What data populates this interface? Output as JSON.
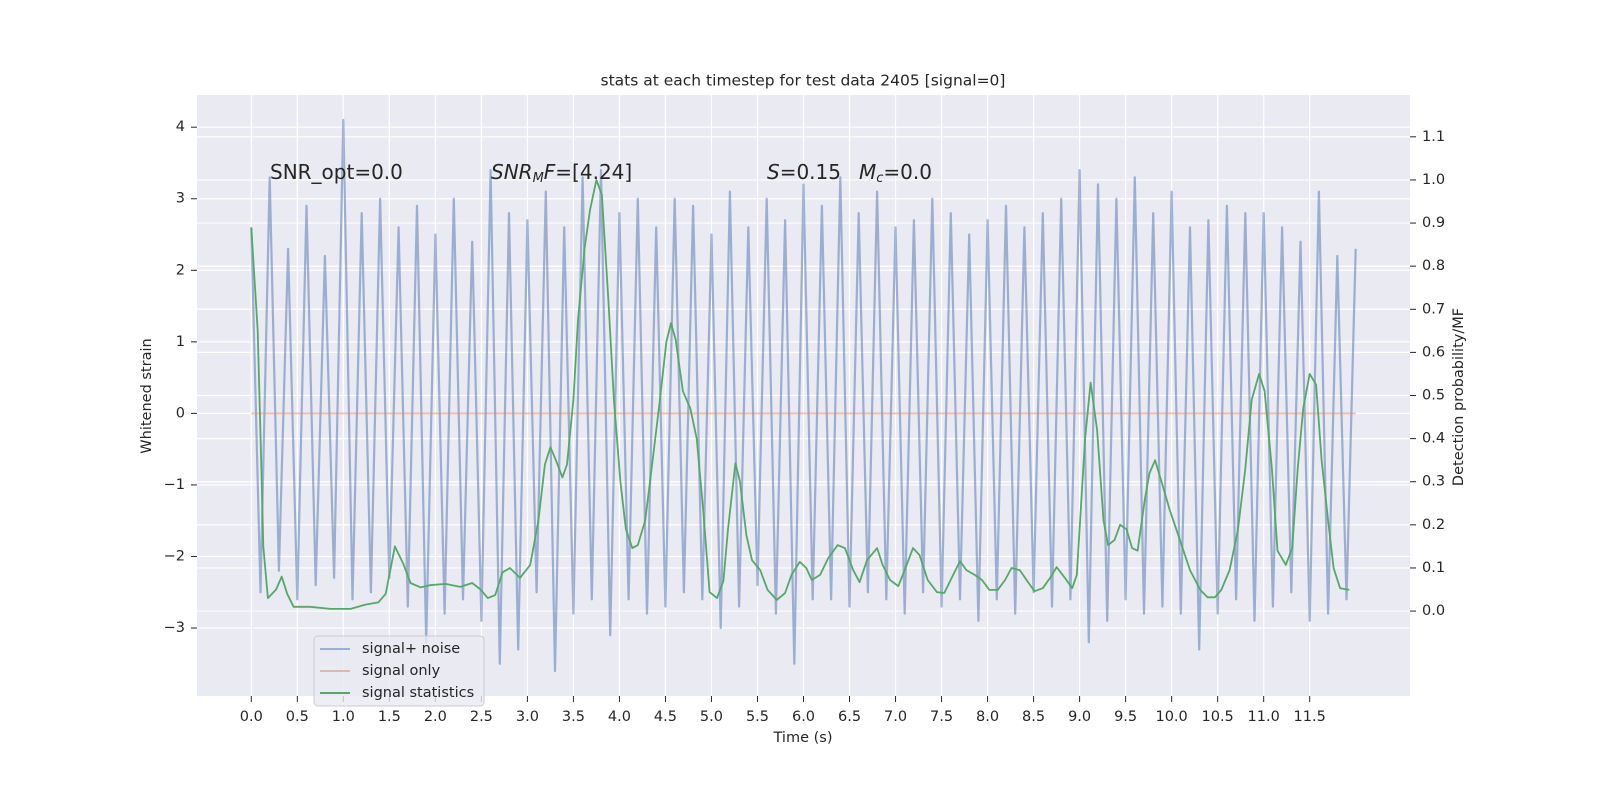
{
  "chart_data": {
    "type": "line",
    "title": "stats at each timestep for test data 2405 [signal=0]",
    "x_label": "Time (s)",
    "y_label": "Whitened strain",
    "y2_label": "Detection probability/MF",
    "xlim": [
      -0.59,
      12.59
    ],
    "ylim": [
      -3.95,
      4.45
    ],
    "y2lim": [
      -0.197,
      1.197
    ],
    "xticks": [
      {
        "value": 0,
        "label": "0.0"
      },
      0.5,
      {
        "value": 1,
        "label": "1.0"
      },
      1.5,
      {
        "value": 2,
        "label": "2.0"
      },
      2.5,
      {
        "value": 3,
        "label": "3.0"
      },
      3.5,
      {
        "value": 4,
        "label": "4.0"
      },
      4.5,
      {
        "value": 5,
        "label": "5.0"
      },
      5.5,
      {
        "value": 6,
        "label": "6.0"
      },
      6.5,
      {
        "value": 7,
        "label": "7.0"
      },
      7.5,
      {
        "value": 8,
        "label": "8.0"
      },
      8.5,
      {
        "value": 9,
        "label": "9.0"
      },
      9.5,
      {
        "value": 10,
        "label": "10.0"
      },
      10.5,
      {
        "value": 11,
        "label": "11.0"
      },
      11.5
    ],
    "yticks": [
      {
        "value": -3,
        "label": "−3"
      },
      {
        "value": -2,
        "label": "−2"
      },
      {
        "value": -1,
        "label": "−1"
      },
      0,
      1,
      2,
      3,
      4
    ],
    "y2ticks": [
      {
        "value": 0,
        "label": "0.0"
      },
      0.1,
      0.2,
      0.3,
      0.4,
      0.5,
      0.6,
      0.7,
      0.8,
      0.9,
      {
        "value": 1,
        "label": "1.0"
      },
      1.1
    ],
    "grid": true,
    "background": "#eaeaf2",
    "legend": "lower left",
    "annotations": [
      [
        {
          "text": "SNR_opt=0.0",
          "style": "normal"
        }
      ],
      [
        {
          "text": "SNR",
          "style": "italic"
        },
        {
          "text": "M",
          "style": "sub"
        },
        {
          "text": "F",
          "style": "italic"
        },
        {
          "text": "=[4.24]",
          "style": "normal"
        }
      ],
      [
        {
          "text": "S",
          "style": "italic"
        },
        {
          "text": "=0.15",
          "style": "normal"
        },
        {
          "text": "M",
          "style": "italic"
        },
        {
          "text": "c",
          "style": "sub"
        },
        {
          "text": "=0.0",
          "style": "normal"
        }
      ]
    ],
    "series": [
      {
        "name": "signal+ noise",
        "color": "#4c72b0",
        "alpha": 0.5,
        "x": [
          0,
          0.1,
          0.2,
          0.3,
          0.4,
          0.5,
          0.6,
          0.7,
          0.8,
          0.9,
          1,
          1.1,
          1.2,
          1.3,
          1.4,
          1.5,
          1.6,
          1.7,
          1.8,
          1.9,
          2,
          2.1,
          2.2,
          2.3,
          2.4,
          2.5,
          2.6,
          2.7,
          2.8,
          2.9,
          3,
          3.1,
          3.2,
          3.3,
          3.4,
          3.5,
          3.6,
          3.7,
          3.8,
          3.9,
          4,
          4.1,
          4.2,
          4.3,
          4.4,
          4.5,
          4.6,
          4.7,
          4.8,
          4.9,
          5,
          5.1,
          5.2,
          5.3,
          5.4,
          5.5,
          5.6,
          5.7,
          5.8,
          5.9,
          6,
          6.1,
          6.2,
          6.3,
          6.4,
          6.5,
          6.6,
          6.7,
          6.8,
          6.9,
          7,
          7.1,
          7.2,
          7.3,
          7.4,
          7.5,
          7.6,
          7.7,
          7.8,
          7.9,
          8,
          8.1,
          8.2,
          8.3,
          8.4,
          8.5,
          8.6,
          8.7,
          8.8,
          8.9,
          9,
          9.1,
          9.2,
          9.3,
          9.4,
          9.5,
          9.6,
          9.7,
          9.8,
          9.9,
          10,
          10.1,
          10.2,
          10.3,
          10.4,
          10.5,
          10.6,
          10.7,
          10.8,
          10.9,
          11,
          11.1,
          11.2,
          11.3,
          11.4,
          11.5,
          11.6,
          11.7,
          11.8,
          11.9,
          12
        ],
        "values": [
          2.6,
          -2.5,
          3.3,
          -2.2,
          2.3,
          -2.6,
          2.9,
          -2.4,
          2.2,
          -2.3,
          4.1,
          -2.6,
          2.8,
          -2.5,
          3.0,
          -2.3,
          2.6,
          -2.7,
          2.9,
          -3.2,
          2.5,
          -2.8,
          3.0,
          -2.6,
          2.4,
          -2.9,
          3.4,
          -3.5,
          2.8,
          -3.3,
          2.7,
          -2.5,
          3.1,
          -3.6,
          2.6,
          -2.8,
          3.3,
          -2.6,
          3.4,
          -3.1,
          2.8,
          -2.6,
          3.0,
          -2.8,
          2.6,
          -2.7,
          3.0,
          -2.5,
          2.9,
          -2.6,
          2.5,
          -3.0,
          3.1,
          -2.7,
          2.6,
          -2.4,
          3.0,
          -2.8,
          2.7,
          -3.5,
          3.2,
          -2.6,
          2.9,
          -2.6,
          3.3,
          -2.7,
          2.8,
          -2.5,
          3.1,
          -2.6,
          2.6,
          -2.8,
          2.7,
          -2.5,
          3.0,
          -2.7,
          2.8,
          -2.6,
          2.5,
          -2.9,
          2.7,
          -2.6,
          2.9,
          -2.8,
          2.6,
          -2.5,
          2.8,
          -2.7,
          3.0,
          -2.6,
          3.4,
          -3.2,
          3.2,
          -2.9,
          3.0,
          -2.6,
          3.3,
          -2.8,
          2.8,
          -2.7,
          3.1,
          -2.8,
          2.6,
          -3.3,
          2.7,
          -2.8,
          2.9,
          -2.6,
          2.8,
          -2.9,
          2.8,
          -2.7,
          2.6,
          -2.5,
          2.4,
          -2.9,
          3.1,
          -2.8,
          2.2,
          -2.6,
          2.3
        ]
      },
      {
        "name": "signal only",
        "color": "#dd8452",
        "alpha": 0.5,
        "x": [
          0,
          12
        ],
        "values": [
          0,
          0
        ]
      },
      {
        "name": "signal statistics",
        "color": "#55a868",
        "alpha": 1,
        "axis": "y2",
        "x": [
          0,
          0.07,
          0.11,
          0.13,
          0.18,
          0.27,
          0.33,
          0.39,
          0.46,
          0.64,
          0.86,
          1.08,
          1.24,
          1.38,
          1.46,
          1.56,
          1.65,
          1.73,
          1.84,
          1.94,
          2.11,
          2.27,
          2.4,
          2.49,
          2.57,
          2.65,
          2.73,
          2.81,
          2.92,
          3.03,
          3.12,
          3.19,
          3.25,
          3.31,
          3.38,
          3.43,
          3.5,
          3.55,
          3.62,
          3.68,
          3.75,
          3.81,
          3.88,
          3.94,
          4.01,
          4.07,
          4.14,
          4.2,
          4.28,
          4.35,
          4.44,
          4.51,
          4.56,
          4.61,
          4.69,
          4.77,
          4.84,
          4.91,
          4.98,
          5.06,
          5.13,
          5.18,
          5.26,
          5.31,
          5.38,
          5.44,
          5.53,
          5.61,
          5.71,
          5.8,
          5.87,
          5.96,
          6.03,
          6.09,
          6.18,
          6.27,
          6.37,
          6.45,
          6.54,
          6.61,
          6.69,
          6.8,
          6.86,
          6.94,
          7.03,
          7.1,
          7.19,
          7.26,
          7.35,
          7.45,
          7.53,
          7.61,
          7.7,
          7.77,
          7.86,
          7.94,
          8.02,
          8.11,
          8.19,
          8.26,
          8.35,
          8.44,
          8.51,
          8.6,
          8.68,
          8.75,
          8.84,
          8.92,
          8.97,
          9.06,
          9.12,
          9.19,
          9.26,
          9.31,
          9.38,
          9.44,
          9.51,
          9.57,
          9.63,
          9.71,
          9.76,
          9.82,
          9.89,
          9.98,
          10.09,
          10.2,
          10.31,
          10.39,
          10.47,
          10.54,
          10.63,
          10.72,
          10.8,
          10.87,
          10.95,
          11.01,
          11.09,
          11.15,
          11.24,
          11.31,
          11.37,
          11.43,
          11.5,
          11.57,
          11.63,
          11.7,
          11.76,
          11.83,
          11.93
        ],
        "values": [
          0.89,
          0.65,
          0.33,
          0.15,
          0.03,
          0.05,
          0.08,
          0.04,
          0.01,
          0.01,
          0.005,
          0.005,
          0.015,
          0.02,
          0.04,
          0.15,
          0.11,
          0.065,
          0.055,
          0.06,
          0.063,
          0.056,
          0.065,
          0.05,
          0.03,
          0.037,
          0.09,
          0.1,
          0.077,
          0.107,
          0.21,
          0.34,
          0.38,
          0.35,
          0.31,
          0.34,
          0.49,
          0.675,
          0.84,
          0.93,
          1.0,
          0.965,
          0.72,
          0.49,
          0.3,
          0.19,
          0.146,
          0.153,
          0.21,
          0.33,
          0.49,
          0.625,
          0.668,
          0.63,
          0.51,
          0.47,
          0.4,
          0.234,
          0.044,
          0.03,
          0.07,
          0.19,
          0.343,
          0.3,
          0.176,
          0.118,
          0.095,
          0.049,
          0.026,
          0.042,
          0.084,
          0.114,
          0.1,
          0.072,
          0.084,
          0.123,
          0.153,
          0.146,
          0.095,
          0.067,
          0.118,
          0.146,
          0.107,
          0.072,
          0.058,
          0.095,
          0.146,
          0.13,
          0.072,
          0.044,
          0.042,
          0.077,
          0.116,
          0.095,
          0.084,
          0.072,
          0.049,
          0.049,
          0.072,
          0.1,
          0.095,
          0.067,
          0.046,
          0.053,
          0.077,
          0.102,
          0.077,
          0.053,
          0.084,
          0.4,
          0.53,
          0.42,
          0.21,
          0.153,
          0.165,
          0.2,
          0.19,
          0.146,
          0.14,
          0.26,
          0.32,
          0.35,
          0.3,
          0.234,
          0.165,
          0.095,
          0.049,
          0.032,
          0.032,
          0.049,
          0.095,
          0.188,
          0.33,
          0.49,
          0.55,
          0.51,
          0.33,
          0.14,
          0.107,
          0.146,
          0.33,
          0.47,
          0.55,
          0.525,
          0.35,
          0.21,
          0.1,
          0.053,
          0.049
        ]
      }
    ]
  }
}
